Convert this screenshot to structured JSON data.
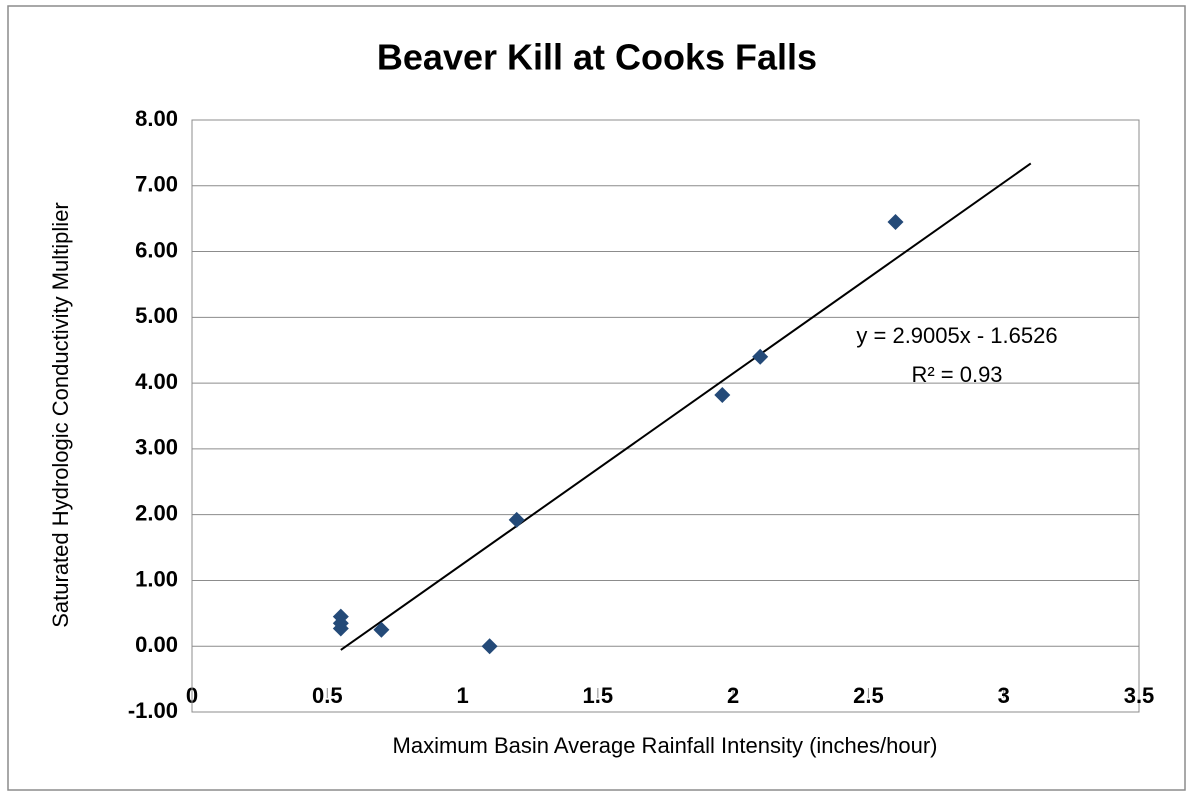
{
  "chart_data": {
    "type": "scatter",
    "title": "Beaver Kill at Cooks Falls",
    "x_label": "Maximum Basin Average Rainfall Intensity (inches/hour)",
    "y_label": "Saturated Hydrologic Conductivity Multiplier",
    "series": [
      {
        "color": "#244a78",
        "x": [
          0.55,
          0.55,
          0.55,
          0.7,
          1.1,
          1.2,
          1.96,
          2.1,
          2.6
        ],
        "values": [
          0.45,
          0.35,
          0.27,
          0.25,
          0.0,
          1.92,
          3.82,
          4.4,
          6.45
        ]
      }
    ],
    "trendline": {
      "slope": 2.9005,
      "intercept": -1.6526,
      "x_range": [
        0.55,
        3.1
      ],
      "color": "#000000"
    },
    "annotations": [
      "y = 2.9005x - 1.6526",
      "R² = 0.93"
    ],
    "xlim": [
      0,
      3.5
    ],
    "xticks": [
      0,
      0.5,
      1,
      1.5,
      2,
      2.5,
      3,
      3.5
    ],
    "ylim": [
      -1,
      8
    ],
    "yticks": [
      {
        "value": -1,
        "label": "-1.00"
      },
      {
        "value": 0,
        "label": "0.00"
      },
      {
        "value": 1,
        "label": "1.00"
      },
      {
        "value": 2,
        "label": "2.00"
      },
      {
        "value": 3,
        "label": "3.00"
      },
      {
        "value": 4,
        "label": "4.00"
      },
      {
        "value": 5,
        "label": "5.00"
      },
      {
        "value": 6,
        "label": "6.00"
      },
      {
        "value": 7,
        "label": "7.00"
      },
      {
        "value": 8,
        "label": "8.00"
      }
    ],
    "grid": true
  }
}
